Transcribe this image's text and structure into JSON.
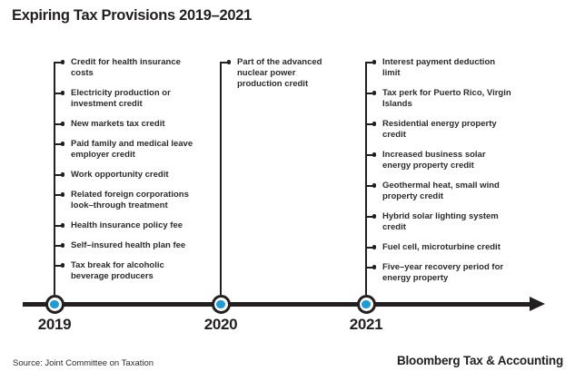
{
  "title": "Expiring Tax Provisions 2019–2021",
  "footer": {
    "source": "Source: Joint Committee on Taxation",
    "brand": "Bloomberg Tax & Accounting"
  },
  "colors": {
    "ink": "#231f20",
    "text": "#2d2a2b",
    "accent_blue": "#1b9dd9",
    "background": "#ffffff"
  },
  "chart_data": {
    "type": "timeline",
    "title": "Expiring Tax Provisions 2019–2021",
    "orientation": "horizontal",
    "arrow_direction": "right",
    "categories": [
      "2019",
      "2020",
      "2021"
    ],
    "groups": [
      {
        "year": "2019",
        "items": [
          "Credit for health insurance costs",
          "Electricity production or investment credit",
          "New markets tax credit",
          "Paid family and medical leave employer credit",
          "Work opportunity credit",
          "Related foreign corporations look–through treatment",
          "Health insurance policy fee",
          "Self–insured health plan fee",
          "Tax break for alcoholic beverage producers"
        ]
      },
      {
        "year": "2020",
        "items": [
          "Part of the advanced nuclear power production credit"
        ]
      },
      {
        "year": "2021",
        "items": [
          "Interest payment deduction limit",
          "Tax perk for Puerto Rico, Virgin Islands",
          "Residential energy property credit",
          "Increased business solar energy property credit",
          "Geothermal heat, small wind property credit",
          "Hybrid solar lighting system credit",
          "Fuel cell, microturbine credit",
          "Five–year recovery period for energy property"
        ]
      }
    ]
  }
}
